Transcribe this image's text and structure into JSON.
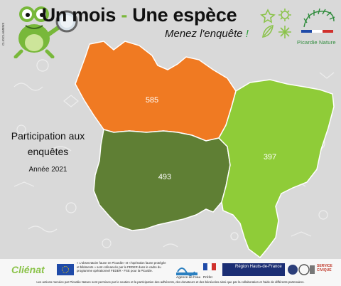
{
  "header": {
    "title_part1": "Un mois",
    "title_dash": "-",
    "title_part2": "Une espèce",
    "subtitle": "Menez l'enquête",
    "subtitle_mark": "!",
    "brand": "Picardie Nature",
    "vertical_credit": "CLIGCLAMENS"
  },
  "panel": {
    "title_line1": "Participation aux",
    "title_line2": "enquêtes",
    "year": "Année 2021"
  },
  "map": {
    "regions": [
      {
        "name": "nord-ouest",
        "value": "585",
        "color": "#f07a22"
      },
      {
        "name": "sud-ouest",
        "value": "493",
        "color": "#5f7f34"
      },
      {
        "name": "est",
        "value": "397",
        "color": "#8fcc38"
      }
    ]
  },
  "footer": {
    "logo": "Cliénat",
    "eu_text": "« L'observatoire faune en Picardie» et «l'opération faune protégée et bâtiments » sont cofinancés par le FEDER dans le cadre du programme opérationnel FEDER - FSE pour la Picardie.",
    "bottom_text": "Les actions menées par Picardie Nature sont permises par le soutien et la participation des adhérents, des donateurs et des bénévoles ainsi que par la collaboration et l'aide de différents partenaires.",
    "region_name": "Région Hauts-de-France",
    "civique": "SERVICE CIVIQUE",
    "partner_1": "Agence de l'eau",
    "partner_2": "Préfet"
  },
  "colors": {
    "accent_green": "#7ab83a",
    "orange": "#f07a22",
    "dark_green": "#5f7f34",
    "light_green": "#8fcc38"
  }
}
